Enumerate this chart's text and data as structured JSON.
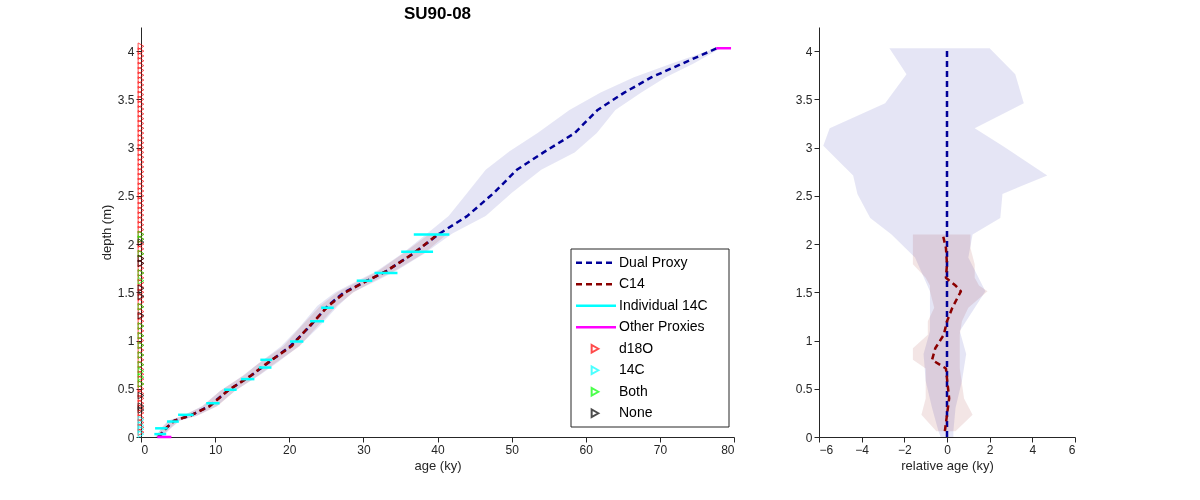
{
  "chart_data": [
    {
      "type": "line",
      "title": "SU90-08",
      "xlabel": "age (ky)",
      "ylabel": "depth (m)",
      "orientation": "horizontal",
      "xlim": [
        0,
        80
      ],
      "xticks": [
        0,
        10,
        20,
        30,
        40,
        50,
        60,
        70,
        80
      ],
      "ylim": [
        0,
        4.25
      ],
      "yticks": [
        0,
        0.5,
        1,
        1.5,
        2,
        2.5,
        3,
        3.5,
        4
      ],
      "legend": "bottom right",
      "series": [
        {
          "name": "Dual Proxy",
          "color": "#000099",
          "line_style": "dashed",
          "x": [
            0,
            0.1,
            0.17,
            0.22,
            0.32,
            0.48,
            0.64,
            0.76,
            0.94,
            1.14,
            1.36,
            1.5,
            1.62,
            1.72,
            1.9,
            2.11,
            2.29,
            2.53,
            2.77,
            2.95,
            3.15,
            3.39,
            3.57,
            3.73,
            3.87,
            4.03
          ],
          "values": [
            2.4,
            3.5,
            4.5,
            6.6,
            9.2,
            11.7,
            14.9,
            17.0,
            20.1,
            22.7,
            25.2,
            27.4,
            30.5,
            33.1,
            36.7,
            40.3,
            44.0,
            47.6,
            50.7,
            54.3,
            58.5,
            61.6,
            65.2,
            68.9,
            73.0,
            77.7
          ],
          "lower": [
            2.0,
            2.8,
            3.7,
            5.6,
            8.2,
            10.7,
            13.8,
            15.8,
            18.9,
            21.4,
            23.8,
            26.2,
            29.2,
            31.8,
            35.2,
            38.6,
            41.5,
            44.0,
            46.5,
            49.5,
            53.5,
            57.8,
            62.0,
            66.5,
            71.5,
            77.5
          ],
          "upper": [
            2.8,
            4.2,
            5.3,
            7.6,
            10.2,
            12.7,
            16.0,
            18.2,
            21.3,
            24.0,
            26.6,
            28.6,
            31.8,
            34.4,
            38.2,
            42.0,
            46.5,
            50.0,
            54.0,
            58.5,
            61.5,
            64.0,
            67.5,
            70.8,
            74.5,
            78.2
          ]
        },
        {
          "name": "C14",
          "color": "#8b0000",
          "line_style": "dashed",
          "x": [
            0,
            0.1,
            0.17,
            0.22,
            0.32,
            0.48,
            0.64,
            0.76,
            0.94,
            1.14,
            1.36,
            1.5,
            1.62,
            1.72,
            1.9,
            2.11
          ],
          "values": [
            2.3,
            3.5,
            4.5,
            6.6,
            9.3,
            11.7,
            14.9,
            16.9,
            20.3,
            22.6,
            25.3,
            27.6,
            30.5,
            33.1,
            36.7,
            40.2
          ],
          "lower": [
            1.9,
            2.9,
            3.8,
            5.7,
            8.3,
            10.7,
            13.9,
            15.8,
            19.2,
            21.5,
            24.2,
            26.5,
            29.5,
            32.0,
            35.3,
            39.0
          ],
          "upper": [
            2.7,
            4.1,
            5.2,
            7.5,
            10.3,
            12.7,
            15.9,
            18.0,
            21.4,
            23.7,
            26.4,
            28.7,
            31.5,
            34.2,
            38.1,
            41.4
          ]
        },
        {
          "name": "Individual 14C",
          "color": "#00ffff",
          "line_style": "solid",
          "x": [
            0.03,
            0.03
          ],
          "values": [
            1.8,
            3.4
          ]
        },
        {
          "color": "#00ffff",
          "line_style": "solid",
          "x": [
            0.09,
            0.09
          ],
          "values": [
            1.9,
            3.6
          ]
        },
        {
          "color": "#00ffff",
          "line_style": "solid",
          "x": [
            0.16,
            0.16
          ],
          "values": [
            3.5,
            5.1
          ]
        },
        {
          "color": "#00ffff",
          "line_style": "solid",
          "x": [
            0.23,
            0.23
          ],
          "values": [
            5.0,
            7.1
          ]
        },
        {
          "color": "#00ffff",
          "line_style": "solid",
          "x": [
            0.35,
            0.35
          ],
          "values": [
            8.8,
            10.6
          ]
        },
        {
          "color": "#00ffff",
          "line_style": "solid",
          "x": [
            0.49,
            0.49
          ],
          "values": [
            11.2,
            12.9
          ]
        },
        {
          "color": "#00ffff",
          "line_style": "solid",
          "x": [
            0.6,
            0.6
          ],
          "values": [
            13.5,
            15.3
          ]
        },
        {
          "color": "#00ffff",
          "line_style": "solid",
          "x": [
            0.72,
            0.72
          ],
          "values": [
            15.9,
            17.6
          ]
        },
        {
          "color": "#00ffff",
          "line_style": "solid",
          "x": [
            0.8,
            0.8
          ],
          "values": [
            16.1,
            17.7
          ]
        },
        {
          "color": "#00ffff",
          "line_style": "solid",
          "x": [
            0.99,
            0.99
          ],
          "values": [
            20.1,
            21.9
          ]
        },
        {
          "color": "#00ffff",
          "line_style": "solid",
          "x": [
            1.2,
            1.2
          ],
          "values": [
            22.8,
            24.7
          ]
        },
        {
          "color": "#00ffff",
          "line_style": "solid",
          "x": [
            1.34,
            1.34
          ],
          "values": [
            24.3,
            26.0
          ]
        },
        {
          "color": "#00ffff",
          "line_style": "solid",
          "x": [
            1.62,
            1.62
          ],
          "values": [
            29.1,
            31.2
          ]
        },
        {
          "color": "#00ffff",
          "line_style": "solid",
          "x": [
            1.7,
            1.7
          ],
          "values": [
            31.5,
            34.6
          ]
        },
        {
          "color": "#00ffff",
          "line_style": "solid",
          "x": [
            1.92,
            1.92
          ],
          "values": [
            35.1,
            39.4
          ]
        },
        {
          "color": "#00ffff",
          "line_style": "solid",
          "x": [
            2.1,
            2.1
          ],
          "values": [
            36.8,
            41.6
          ]
        },
        {
          "name": "Other Proxies",
          "color": "#ff00ff",
          "line_style": "solid",
          "x": [
            0,
            0
          ],
          "values": [
            2.2,
            4.1
          ]
        },
        {
          "color": "#ff00ff",
          "line_style": "solid",
          "x": [
            4.03,
            4.03
          ],
          "values": [
            77.6,
            79.6
          ]
        },
        {
          "name": "d18O",
          "type": "scatter",
          "marker": "triangle",
          "color": "#ff0000",
          "x": [
            0.05,
            0.1,
            0.15,
            0.2,
            0.25,
            0.3,
            0.35,
            0.4,
            0.45,
            0.5,
            0.55,
            0.6,
            0.65,
            0.7,
            0.75,
            0.8,
            0.85,
            0.9,
            0.95,
            1.0,
            1.05,
            1.1,
            1.15,
            1.2,
            1.25,
            1.3,
            1.35,
            1.4,
            1.45,
            1.5,
            1.55,
            1.6,
            1.65,
            1.7,
            1.75,
            1.8,
            1.85,
            1.9,
            1.95,
            2.0,
            2.05,
            2.1,
            2.15,
            2.2,
            2.25,
            2.3,
            2.35,
            2.4,
            2.45,
            2.5,
            2.55,
            2.6,
            2.65,
            2.7,
            2.75,
            2.8,
            2.85,
            2.9,
            2.95,
            3.0,
            3.05,
            3.1,
            3.15,
            3.2,
            3.25,
            3.3,
            3.35,
            3.4,
            3.45,
            3.5,
            3.55,
            3.6,
            3.65,
            3.7,
            3.75,
            3.8,
            3.85,
            3.9,
            3.95,
            4.0,
            4.05
          ],
          "values": [
            0,
            0,
            0,
            0,
            0,
            0,
            0,
            0,
            0,
            0,
            0,
            0,
            0,
            0,
            0,
            0,
            0,
            0,
            0,
            0,
            0,
            0,
            0,
            0,
            0,
            0,
            0,
            0,
            0,
            0,
            0,
            0,
            0,
            0,
            0,
            0,
            0,
            0,
            0,
            0,
            0,
            0,
            0,
            0,
            0,
            0,
            0,
            0,
            0,
            0,
            0,
            0,
            0,
            0,
            0,
            0,
            0,
            0,
            0,
            0,
            0,
            0,
            0,
            0,
            0,
            0,
            0,
            0,
            0,
            0,
            0,
            0,
            0,
            0,
            0,
            0,
            0,
            0,
            0,
            0,
            0
          ]
        },
        {
          "name": "14C",
          "type": "scatter",
          "marker": "triangle",
          "color": "#00ffff",
          "x": [
            0.03,
            0.08,
            0.12,
            0.18
          ],
          "values": [
            0,
            0,
            0,
            0
          ]
        },
        {
          "name": "Both",
          "type": "scatter",
          "marker": "triangle",
          "color": "#00ff00",
          "x": [
            0.55,
            0.62,
            0.68,
            0.75,
            0.85,
            0.95,
            1.05,
            1.15,
            1.35,
            1.62,
            1.7,
            1.9,
            2.05,
            2.1
          ],
          "values": [
            0,
            0,
            0,
            0,
            0,
            0,
            0,
            0,
            0,
            0,
            0,
            0,
            0,
            0
          ]
        },
        {
          "name": "None",
          "type": "scatter",
          "marker": "triangle",
          "color": "#000000",
          "x": [
            0.28,
            0.32,
            0.43,
            1.26,
            1.46,
            1.54,
            1.8,
            1.85,
            2.02
          ],
          "values": [
            0,
            0,
            0,
            0,
            0,
            0,
            0,
            0,
            0
          ]
        }
      ]
    },
    {
      "type": "line",
      "xlabel": "relative age (ky)",
      "orientation": "horizontal",
      "xlim": [
        -6,
        6
      ],
      "xticks": [
        -6,
        -4,
        -2,
        0,
        2,
        4,
        6
      ],
      "ylim": [
        0,
        4.25
      ],
      "yticks": [
        0,
        0.5,
        1,
        1.5,
        2,
        2.5,
        3,
        3.5,
        4
      ],
      "series": [
        {
          "color": "#000099",
          "line_style": "dashed",
          "x": [
            0,
            0.06,
            0.3,
            0.58,
            0.86,
            1.1,
            1.51,
            1.86,
            2.1,
            2.27,
            2.52,
            2.71,
            3.02,
            3.2,
            3.46,
            3.76,
            4.03
          ],
          "values": [
            0,
            0,
            0,
            0,
            0,
            0,
            0,
            0,
            0,
            0,
            0,
            0,
            0,
            0,
            0,
            0,
            0
          ],
          "lower": [
            -0.3,
            -0.4,
            -0.7,
            -1.0,
            -1.1,
            -0.8,
            -0.8,
            -1.5,
            -2.6,
            -3.6,
            -4.2,
            -4.4,
            -5.8,
            -5.5,
            -2.9,
            -1.9,
            -2.7
          ],
          "upper": [
            0.3,
            0.3,
            0.4,
            0.7,
            0.9,
            0.6,
            1.8,
            1.0,
            1.2,
            2.5,
            2.6,
            4.7,
            2.6,
            1.3,
            3.6,
            3.2,
            2.0
          ]
        },
        {
          "color": "#8b0000",
          "line_style": "dashed",
          "x": [
            0.06,
            0.23,
            0.4,
            0.71,
            0.8,
            0.92,
            1.06,
            1.2,
            1.34,
            1.51,
            1.57,
            1.65,
            1.79,
            1.96,
            2.1
          ],
          "values": [
            -0.1,
            0.0,
            0.1,
            -0.05,
            -0.7,
            -0.55,
            -0.15,
            0.0,
            0.25,
            0.65,
            0.4,
            -0.05,
            0.0,
            -0.05,
            -0.2
          ],
          "lower": [
            -0.5,
            -1.2,
            -1.0,
            -1.0,
            -1.6,
            -1.6,
            -0.9,
            -0.9,
            -0.6,
            -0.8,
            -0.8,
            -1.0,
            -1.6,
            -1.6,
            -1.6
          ],
          "upper": [
            0.4,
            1.2,
            0.8,
            0.6,
            0.6,
            0.6,
            0.6,
            0.7,
            1.0,
            1.9,
            1.5,
            1.3,
            1.3,
            1.1,
            1.1
          ]
        }
      ]
    }
  ]
}
